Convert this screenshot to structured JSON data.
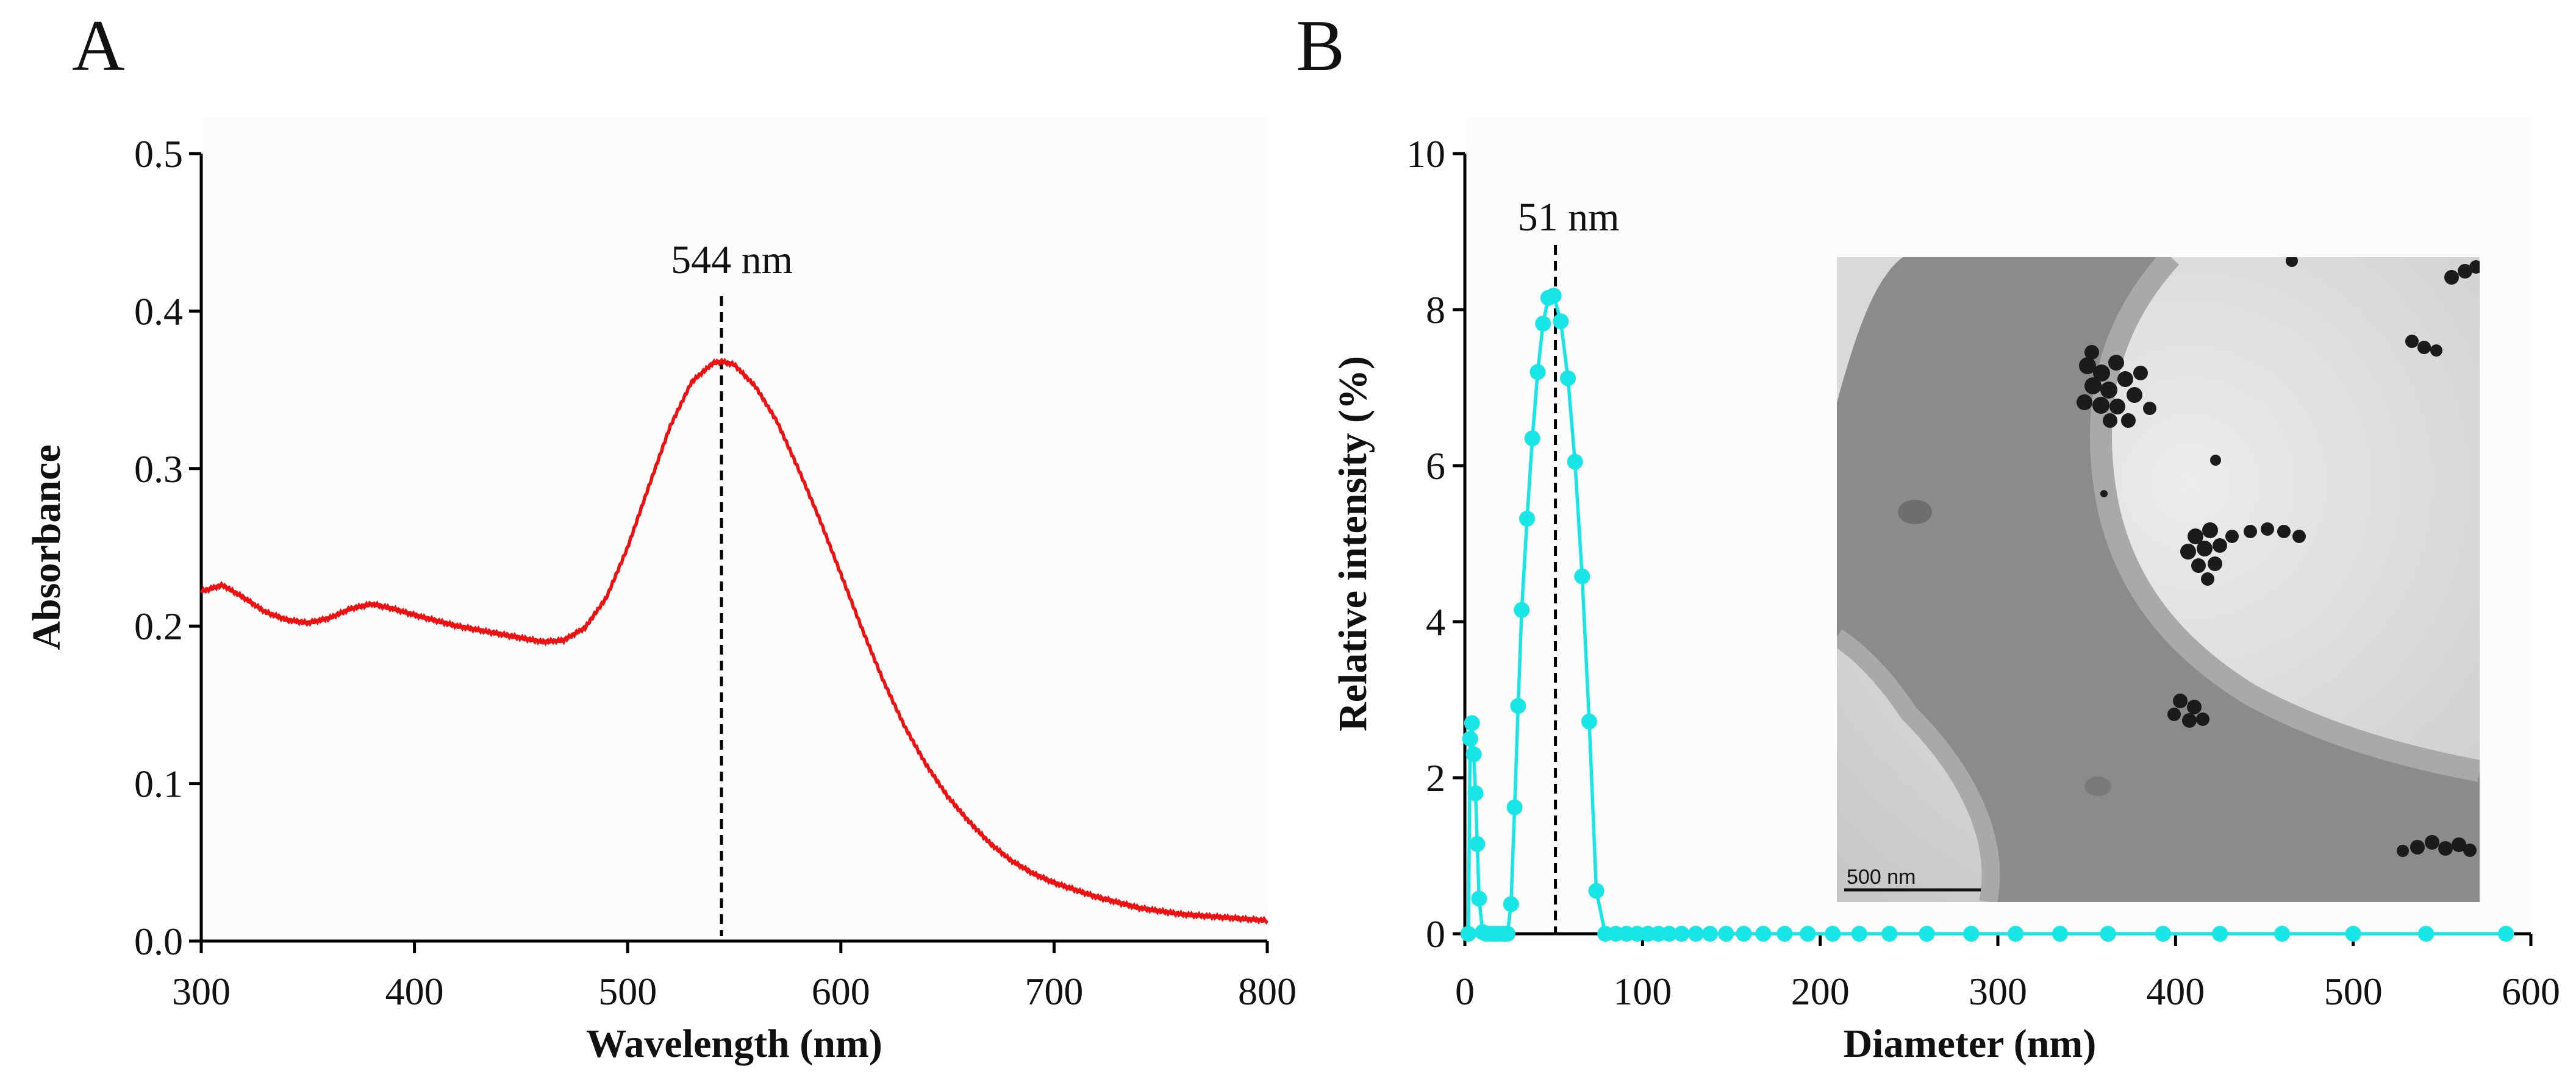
{
  "colors": {
    "uv": "#ee1111",
    "dls": "#18e6e6",
    "plot_bg": "#fcfcfc"
  },
  "chart_data": [
    {
      "panel": "A",
      "type": "line",
      "xlabel": "Wavelength (nm)",
      "ylabel": "Absorbance",
      "xlim": [
        300,
        800
      ],
      "ylim": [
        0.0,
        0.5
      ],
      "xticks": [
        300,
        400,
        500,
        600,
        700,
        800
      ],
      "yticks": [
        0.0,
        0.1,
        0.2,
        0.3,
        0.4,
        0.5
      ],
      "xtick_labels": [
        "300",
        "400",
        "500",
        "600",
        "700",
        "800"
      ],
      "ytick_labels": [
        "0.0",
        "0.1",
        "0.2",
        "0.3",
        "0.4",
        "0.5"
      ],
      "peak": {
        "x": 544,
        "label": "544 nm"
      },
      "series": [
        {
          "name": "Absorbance",
          "x": [
            300,
            310,
            320,
            330,
            340,
            350,
            360,
            370,
            380,
            390,
            400,
            420,
            440,
            460,
            470,
            480,
            490,
            500,
            510,
            520,
            530,
            540,
            544,
            550,
            560,
            570,
            580,
            590,
            600,
            610,
            620,
            630,
            640,
            650,
            660,
            670,
            680,
            690,
            700,
            720,
            740,
            760,
            780,
            800
          ],
          "values": [
            0.222,
            0.226,
            0.218,
            0.209,
            0.204,
            0.202,
            0.205,
            0.211,
            0.214,
            0.211,
            0.207,
            0.2,
            0.195,
            0.19,
            0.191,
            0.199,
            0.218,
            0.25,
            0.289,
            0.327,
            0.355,
            0.367,
            0.368,
            0.366,
            0.352,
            0.33,
            0.3,
            0.268,
            0.233,
            0.198,
            0.165,
            0.136,
            0.112,
            0.092,
            0.076,
            0.062,
            0.051,
            0.043,
            0.037,
            0.028,
            0.021,
            0.017,
            0.015,
            0.013
          ]
        }
      ]
    },
    {
      "panel": "B",
      "type": "line",
      "xlabel": "Diameter  (nm)",
      "ylabel": "Relative intensity (%)",
      "xlim": [
        0,
        600
      ],
      "ylim": [
        0,
        10
      ],
      "xticks": [
        0,
        100,
        200,
        300,
        400,
        500,
        600
      ],
      "yticks": [
        0,
        2,
        4,
        6,
        8,
        10
      ],
      "xtick_labels": [
        "0",
        "100",
        "200",
        "300",
        "400",
        "500",
        "600"
      ],
      "ytick_labels": [
        "0",
        "2",
        "4",
        "6",
        "8",
        "10"
      ],
      "peak": {
        "x": 51,
        "label": "51 nm"
      },
      "inset": {
        "type": "TEM micrograph",
        "scale_bar": "500 nm"
      },
      "series": [
        {
          "name": "Relative intensity",
          "x": [
            2,
            3,
            4,
            5,
            6,
            7,
            8,
            10,
            12,
            14,
            16,
            18,
            20,
            22,
            24,
            26,
            28,
            30,
            32,
            35,
            38,
            41,
            44,
            47,
            50,
            54,
            58,
            62,
            66,
            70,
            74,
            79,
            85,
            91,
            97,
            103,
            109,
            115,
            122,
            130,
            138,
            147,
            157,
            168,
            180,
            193,
            207,
            222,
            239,
            260,
            285,
            310,
            335,
            362,
            393,
            425,
            460,
            500,
            541,
            586
          ],
          "values": [
            0,
            2.5,
            2.7,
            2.3,
            1.8,
            1.15,
            0.45,
            0.02,
            0,
            0,
            0,
            0,
            0,
            0,
            0,
            0.38,
            1.62,
            2.92,
            4.15,
            5.32,
            6.35,
            7.2,
            7.82,
            8.15,
            8.18,
            7.85,
            7.12,
            6.05,
            4.58,
            2.72,
            0.55,
            0,
            0,
            0,
            0,
            0,
            0,
            0,
            0,
            0,
            0,
            0,
            0,
            0,
            0,
            0,
            0,
            0,
            0,
            0,
            0,
            0,
            0,
            0,
            0,
            0,
            0,
            0,
            0,
            0
          ]
        }
      ]
    }
  ]
}
